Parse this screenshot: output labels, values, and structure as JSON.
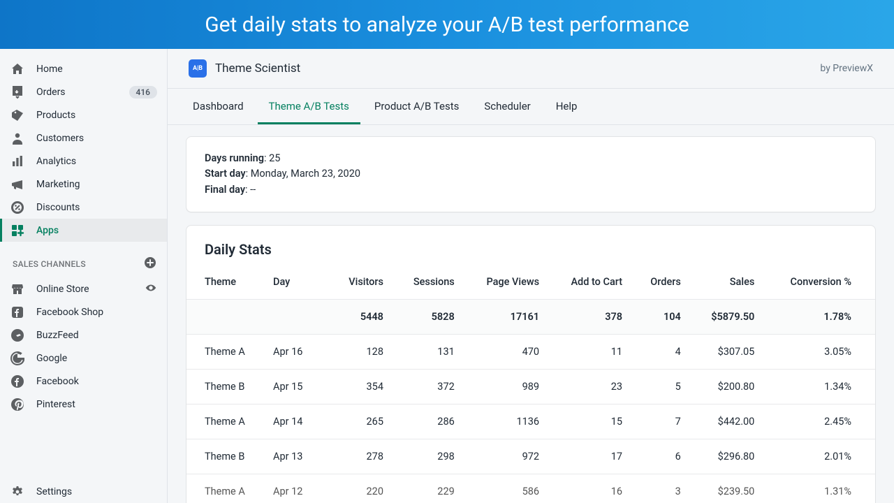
{
  "banner": {
    "text": "Get daily stats to analyze your A/B test performance"
  },
  "sidebar": {
    "main": [
      {
        "label": "Home",
        "icon": "home"
      },
      {
        "label": "Orders",
        "icon": "orders",
        "badge": "416"
      },
      {
        "label": "Products",
        "icon": "products"
      },
      {
        "label": "Customers",
        "icon": "customers"
      },
      {
        "label": "Analytics",
        "icon": "analytics"
      },
      {
        "label": "Marketing",
        "icon": "marketing"
      },
      {
        "label": "Discounts",
        "icon": "discounts"
      },
      {
        "label": "Apps",
        "icon": "apps",
        "active": true
      }
    ],
    "channels_header": "SALES CHANNELS",
    "channels": [
      {
        "label": "Online Store",
        "icon": "store",
        "trailing": "eye"
      },
      {
        "label": "Facebook Shop",
        "icon": "fbshop"
      },
      {
        "label": "BuzzFeed",
        "icon": "buzz"
      },
      {
        "label": "Google",
        "icon": "google"
      },
      {
        "label": "Facebook",
        "icon": "facebook"
      },
      {
        "label": "Pinterest",
        "icon": "pinterest"
      }
    ],
    "settings_label": "Settings"
  },
  "app": {
    "logo_text": "A|B",
    "title": "Theme Scientist",
    "by": "by PreviewX"
  },
  "tabs": [
    {
      "label": "Dashboard"
    },
    {
      "label": "Theme A/B Tests",
      "active": true
    },
    {
      "label": "Product A/B Tests"
    },
    {
      "label": "Scheduler"
    },
    {
      "label": "Help"
    }
  ],
  "info": {
    "days_running_label": "Days running",
    "days_running_value": "25",
    "start_day_label": "Start day",
    "start_day_value": "Monday, March 23, 2020",
    "final_day_label": "Final day",
    "final_day_value": "--"
  },
  "stats": {
    "title": "Daily Stats",
    "columns": [
      "Theme",
      "Day",
      "Visitors",
      "Sessions",
      "Page Views",
      "Add to Cart",
      "Orders",
      "Sales",
      "Conversion %"
    ],
    "totals": [
      "",
      "",
      "5448",
      "5828",
      "17161",
      "378",
      "104",
      "$5879.50",
      "1.78%"
    ],
    "rows": [
      [
        "Theme A",
        "Apr 16",
        "128",
        "131",
        "470",
        "11",
        "4",
        "$307.05",
        "3.05%"
      ],
      [
        "Theme B",
        "Apr 15",
        "354",
        "372",
        "989",
        "23",
        "5",
        "$200.80",
        "1.34%"
      ],
      [
        "Theme A",
        "Apr 14",
        "265",
        "286",
        "1136",
        "15",
        "7",
        "$442.00",
        "2.45%"
      ],
      [
        "Theme B",
        "Apr 13",
        "278",
        "298",
        "972",
        "17",
        "6",
        "$296.80",
        "2.01%"
      ],
      [
        "Theme A",
        "Apr 12",
        "220",
        "229",
        "586",
        "16",
        "3",
        "$239.50",
        "1.31%"
      ]
    ]
  },
  "colors": {
    "accent": "#058060",
    "banner_start": "#0e75c8",
    "banner_end": "#2aa6e8",
    "sidebar_bg": "#f4f6f8",
    "border": "#dfe3e8",
    "text": "#212b36",
    "muted": "#637381",
    "badge_bg": "#dfe3e8"
  }
}
